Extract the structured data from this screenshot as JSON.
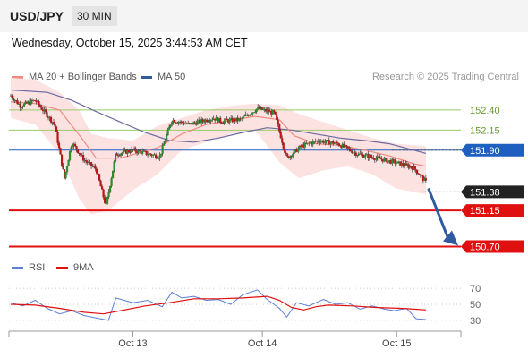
{
  "header": {
    "symbol": "USD/JPY",
    "timeframe": "30 MIN"
  },
  "datetime": "Wednesday, October 15, 2025 3:44:53 AM CET",
  "legend": {
    "ma20": {
      "label": "MA 20 + Bollinger Bands",
      "color": "#f08a80"
    },
    "ma50": {
      "label": "MA 50",
      "color": "#2f5aa0"
    }
  },
  "copyright": "Research © 2025 Trading Central",
  "rsi_legend": {
    "rsi": {
      "label": "RSI",
      "color": "#5b7fd6"
    },
    "ma9": {
      "label": "9MA",
      "color": "#e01010"
    }
  },
  "chart_data": [
    {
      "type": "candlestick",
      "ylim": [
        150.56,
        152.7
      ],
      "x_ticks": [
        "Oct 13",
        "Oct 14",
        "Oct 15"
      ],
      "levels": [
        {
          "value": 152.4,
          "label": "152.40",
          "kind": "resistance",
          "color": "#99cc66"
        },
        {
          "value": 152.15,
          "label": "152.15",
          "kind": "resistance",
          "color": "#99cc66"
        },
        {
          "value": 151.9,
          "label": "151.90",
          "kind": "pivot",
          "color": "#1f5fbf"
        },
        {
          "value": 151.38,
          "label": "151.38",
          "kind": "last",
          "color": "#222222"
        },
        {
          "value": 151.15,
          "label": "151.15",
          "kind": "support",
          "color": "#e01010"
        },
        {
          "value": 150.7,
          "label": "150.70",
          "kind": "support",
          "color": "#e01010"
        }
      ],
      "forecast_arrow": {
        "from": 151.38,
        "to": 150.7,
        "color": "#2f5aa0"
      },
      "colors": {
        "up": "#2e8b2e",
        "down": "#b81818",
        "ma20": "#f08a80",
        "ma50": "#6a6aa0",
        "band": "#fde2e2"
      },
      "close_path": [
        [
          0,
          152.58
        ],
        [
          0.4,
          152.45
        ],
        [
          1.0,
          152.52
        ],
        [
          1.8,
          152.22
        ],
        [
          2.2,
          151.55
        ],
        [
          2.5,
          152.0
        ],
        [
          3.0,
          151.78
        ],
        [
          3.5,
          151.66
        ],
        [
          3.9,
          151.2
        ],
        [
          4.3,
          151.85
        ],
        [
          5.0,
          151.9
        ],
        [
          6.1,
          151.82
        ],
        [
          6.6,
          152.28
        ],
        [
          7.3,
          152.22
        ],
        [
          8.3,
          152.3
        ],
        [
          8.6,
          152.26
        ],
        [
          9.4,
          152.28
        ],
        [
          10.1,
          152.42
        ],
        [
          10.8,
          152.36
        ],
        [
          11.3,
          151.8
        ],
        [
          11.9,
          151.95
        ],
        [
          12.6,
          152.02
        ],
        [
          13.4,
          151.98
        ],
        [
          14.2,
          151.85
        ],
        [
          15.0,
          151.8
        ],
        [
          15.7,
          151.75
        ],
        [
          16.5,
          151.68
        ],
        [
          17.0,
          151.5
        ]
      ],
      "ma20_path": [
        [
          0,
          152.5
        ],
        [
          1.0,
          152.48
        ],
        [
          2.0,
          152.4
        ],
        [
          2.9,
          152.05
        ],
        [
          3.5,
          151.8
        ],
        [
          4.5,
          151.8
        ],
        [
          6.0,
          151.93
        ],
        [
          7.0,
          152.1
        ],
        [
          8.0,
          152.22
        ],
        [
          9.0,
          152.27
        ],
        [
          10.0,
          152.32
        ],
        [
          11.0,
          152.28
        ],
        [
          11.6,
          152.08
        ],
        [
          12.5,
          151.98
        ],
        [
          13.5,
          151.96
        ],
        [
          14.5,
          151.9
        ],
        [
          15.5,
          151.83
        ],
        [
          16.5,
          151.73
        ],
        [
          17.0,
          151.7
        ]
      ],
      "ma50_path": [
        [
          0,
          152.65
        ],
        [
          1.5,
          152.62
        ],
        [
          2.5,
          152.52
        ],
        [
          3.5,
          152.38
        ],
        [
          4.5,
          152.25
        ],
        [
          5.5,
          152.12
        ],
        [
          6.5,
          152.02
        ],
        [
          7.5,
          152.0
        ],
        [
          8.5,
          152.05
        ],
        [
          9.5,
          152.12
        ],
        [
          10.5,
          152.18
        ],
        [
          11.5,
          152.15
        ],
        [
          12.5,
          152.1
        ],
        [
          13.5,
          152.05
        ],
        [
          14.5,
          152.02
        ],
        [
          15.5,
          151.98
        ],
        [
          16.5,
          151.9
        ],
        [
          17.0,
          151.86
        ]
      ],
      "band_upper": [
        [
          0,
          152.8
        ],
        [
          1.0,
          152.78
        ],
        [
          2.0,
          152.62
        ],
        [
          2.8,
          152.4
        ],
        [
          3.3,
          152.1
        ],
        [
          4.0,
          152.05
        ],
        [
          5.0,
          152.02
        ],
        [
          6.0,
          152.2
        ],
        [
          7.0,
          152.3
        ],
        [
          8.0,
          152.4
        ],
        [
          9.0,
          152.45
        ],
        [
          10.0,
          152.48
        ],
        [
          11.0,
          152.46
        ],
        [
          11.8,
          152.35
        ],
        [
          12.8,
          152.25
        ],
        [
          13.8,
          152.15
        ],
        [
          14.8,
          152.05
        ],
        [
          15.8,
          151.98
        ],
        [
          17.0,
          151.95
        ]
      ],
      "band_lower": [
        [
          0,
          152.3
        ],
        [
          1.0,
          152.22
        ],
        [
          2.0,
          151.85
        ],
        [
          2.8,
          151.3
        ],
        [
          3.3,
          151.1
        ],
        [
          4.0,
          151.15
        ],
        [
          5.0,
          151.4
        ],
        [
          6.0,
          151.6
        ],
        [
          7.0,
          151.9
        ],
        [
          8.0,
          152.0
        ],
        [
          9.0,
          152.1
        ],
        [
          10.0,
          152.15
        ],
        [
          11.0,
          151.75
        ],
        [
          11.8,
          151.55
        ],
        [
          12.8,
          151.65
        ],
        [
          13.8,
          151.7
        ],
        [
          14.8,
          151.6
        ],
        [
          15.8,
          151.42
        ],
        [
          17.0,
          151.35
        ]
      ]
    },
    {
      "type": "line",
      "ylim": [
        22,
        78
      ],
      "y_ticks": [
        "70",
        "50",
        "30"
      ],
      "series": [
        {
          "name": "RSI",
          "color": "#5b7fd6",
          "points": [
            [
              0,
              52
            ],
            [
              0.5,
              48
            ],
            [
              1.0,
              55
            ],
            [
              1.5,
              45
            ],
            [
              2.0,
              38
            ],
            [
              2.5,
              42
            ],
            [
              3.0,
              36
            ],
            [
              3.5,
              33
            ],
            [
              4.0,
              30
            ],
            [
              4.3,
              58
            ],
            [
              5.0,
              52
            ],
            [
              5.6,
              55
            ],
            [
              6.2,
              47
            ],
            [
              6.6,
              65
            ],
            [
              7.0,
              58
            ],
            [
              7.5,
              60
            ],
            [
              8.0,
              55
            ],
            [
              8.5,
              56
            ],
            [
              9.0,
              50
            ],
            [
              9.5,
              62
            ],
            [
              10.1,
              68
            ],
            [
              10.5,
              56
            ],
            [
              11.0,
              45
            ],
            [
              11.3,
              34
            ],
            [
              11.7,
              52
            ],
            [
              12.2,
              48
            ],
            [
              12.8,
              56
            ],
            [
              13.3,
              50
            ],
            [
              13.8,
              52
            ],
            [
              14.3,
              44
            ],
            [
              14.8,
              48
            ],
            [
              15.3,
              44
            ],
            [
              15.7,
              42
            ],
            [
              16.2,
              45
            ],
            [
              16.6,
              32
            ],
            [
              17.0,
              31
            ]
          ]
        },
        {
          "name": "9MA",
          "color": "#e01010",
          "points": [
            [
              0,
              50
            ],
            [
              1.0,
              49
            ],
            [
              2.0,
              45
            ],
            [
              3.0,
              40
            ],
            [
              3.8,
              38
            ],
            [
              4.5,
              42
            ],
            [
              5.5,
              48
            ],
            [
              6.5,
              52
            ],
            [
              7.5,
              57
            ],
            [
              8.5,
              57
            ],
            [
              9.5,
              58
            ],
            [
              10.5,
              60
            ],
            [
              11.0,
              55
            ],
            [
              11.5,
              46
            ],
            [
              12.0,
              43
            ],
            [
              12.5,
              47
            ],
            [
              13.0,
              49
            ],
            [
              14.0,
              48
            ],
            [
              15.0,
              46
            ],
            [
              16.0,
              45
            ],
            [
              16.5,
              44
            ],
            [
              17.0,
              43
            ]
          ]
        }
      ]
    }
  ]
}
